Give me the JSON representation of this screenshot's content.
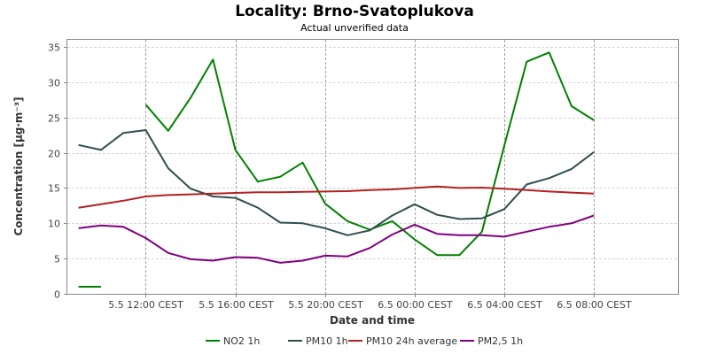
{
  "chart_data": {
    "type": "line",
    "title": "Locality: Brno-Svatoplukova",
    "subtitle": "Actual unverified data",
    "xlabel": "Date and time",
    "ylabel": "Concentration [µg·m⁻³]",
    "ylim": [
      0,
      36
    ],
    "yticks": [
      0,
      5,
      10,
      15,
      20,
      25,
      30,
      35
    ],
    "xlim": [
      8.5,
      35.75
    ],
    "xticks": [
      {
        "x": 12,
        "label": "5.5 12:00 CEST"
      },
      {
        "x": 16,
        "label": "5.5 16:00 CEST"
      },
      {
        "x": 20,
        "label": "5.5 20:00 CEST"
      },
      {
        "x": 24,
        "label": "6.5 00:00 CEST"
      },
      {
        "x": 28,
        "label": "6.5 04:00 CEST"
      },
      {
        "x": 32,
        "label": "6.5 08:00 CEST"
      }
    ],
    "grid": true,
    "legend_position": "bottom",
    "series": [
      {
        "name": "NO2 1h",
        "color": "#008000",
        "x": [
          9,
          10,
          11,
          12,
          13,
          14,
          15,
          16,
          17,
          18,
          19,
          20,
          21,
          22,
          23,
          24,
          25,
          26,
          27,
          28,
          29,
          30,
          31,
          32,
          33,
          34,
          35
        ],
        "values": [
          1.0,
          1.0,
          null,
          26.8,
          23.1,
          27.8,
          33.2,
          20.4,
          15.9,
          16.6,
          18.6,
          12.8,
          10.3,
          9.1,
          10.3,
          7.7,
          5.5,
          5.5,
          8.8,
          21.0,
          32.9,
          34.2,
          26.6,
          24.6,
          null,
          null,
          null
        ],
        "note_x_dates": [
          "5.5 09:00",
          "5.5 10:00",
          "5.5 11:00",
          "5.5 12:00",
          "5.5 13:00",
          "5.5 14:00",
          "5.5 15:00",
          "5.5 16:00",
          "5.5 17:00",
          "5.5 18:00",
          "5.5 19:00",
          "5.5 20:00",
          "5.5 21:00",
          "5.5 22:00",
          "5.5 23:00",
          "6.5 00:00",
          "6.5 01:00",
          "6.5 02:00",
          "6.5 03:00",
          "6.5 04:00",
          "6.5 05:00",
          "6.5 06:00",
          "6.5 07:00",
          "6.5 08:00",
          "6.5 09:00",
          "6.5 10:00",
          "6.5 11:00"
        ]
      },
      {
        "name": "PM10 1h",
        "color": "#2f4f4f",
        "x": [
          9,
          10,
          11,
          12,
          13,
          14,
          15,
          16,
          17,
          18,
          19,
          20,
          21,
          22,
          23,
          24,
          25,
          26,
          27,
          28,
          29,
          30,
          31,
          32,
          33,
          34,
          35
        ],
        "values": [
          21.1,
          20.4,
          22.8,
          23.2,
          17.8,
          14.9,
          13.8,
          13.6,
          12.2,
          10.1,
          10.0,
          9.3,
          8.3,
          9.0,
          11.1,
          12.7,
          11.2,
          10.6,
          10.7,
          12.0,
          15.5,
          16.4,
          17.7,
          20.1,
          null,
          null,
          null
        ]
      },
      {
        "name": "PM10 24h average",
        "color": "#b22222",
        "x": [
          9,
          10,
          11,
          12,
          13,
          14,
          15,
          16,
          17,
          18,
          19,
          20,
          21,
          22,
          23,
          24,
          25,
          26,
          27,
          28,
          29,
          30,
          31,
          32,
          33,
          34,
          35
        ],
        "values": [
          12.2,
          12.7,
          13.2,
          13.8,
          14.0,
          14.1,
          14.2,
          14.3,
          14.4,
          14.4,
          14.45,
          14.5,
          14.55,
          14.7,
          14.8,
          15.0,
          15.2,
          15.0,
          15.05,
          14.9,
          14.7,
          14.5,
          14.35,
          14.2,
          null,
          null,
          null
        ]
      },
      {
        "name": "PM2,5 1h",
        "color": "#800080",
        "x": [
          9,
          10,
          11,
          12,
          13,
          14,
          15,
          16,
          17,
          18,
          19,
          20,
          21,
          22,
          23,
          24,
          25,
          26,
          27,
          28,
          29,
          30,
          31,
          32,
          33,
          34,
          35
        ],
        "values": [
          9.3,
          9.7,
          9.5,
          7.9,
          5.8,
          4.9,
          4.7,
          5.2,
          5.1,
          4.4,
          4.7,
          5.4,
          5.3,
          6.5,
          8.4,
          9.8,
          8.5,
          8.3,
          8.3,
          8.1,
          8.8,
          9.5,
          10.0,
          11.1,
          null,
          null,
          null
        ]
      }
    ]
  }
}
